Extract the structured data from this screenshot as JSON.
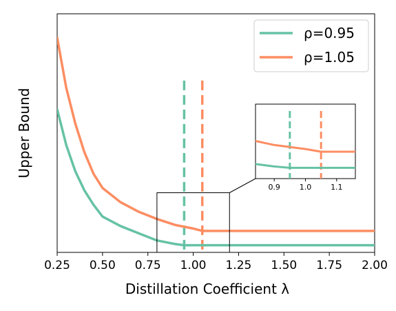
{
  "chart_data": {
    "type": "line",
    "title": "",
    "xlabel": "Distillation Coefficient λ",
    "ylabel": "Upper Bound",
    "xlim": [
      0.25,
      2.0
    ],
    "ylim": [
      0.0,
      1.0
    ],
    "x_ticks": [
      "0.25",
      "0.50",
      "0.75",
      "1.00",
      "1.25",
      "1.50",
      "1.75",
      "2.00"
    ],
    "x_tick_values": [
      0.25,
      0.5,
      0.75,
      1.0,
      1.25,
      1.5,
      1.75,
      2.0
    ],
    "y_ticks_shown": false,
    "grid": false,
    "legend_position": "top-right",
    "series": [
      {
        "name": "ρ=0.95",
        "color": "#66c2a5",
        "x": [
          0.25,
          0.3,
          0.35,
          0.4,
          0.45,
          0.5,
          0.6,
          0.7,
          0.8,
          0.9,
          0.95,
          1.0,
          1.25,
          1.5,
          1.75,
          2.0
        ],
        "y": [
          0.6,
          0.45,
          0.34,
          0.26,
          0.2,
          0.15,
          0.11,
          0.08,
          0.05,
          0.035,
          0.03,
          0.03,
          0.03,
          0.03,
          0.03,
          0.03
        ]
      },
      {
        "name": "ρ=1.05",
        "color": "#fc8d62",
        "x": [
          0.25,
          0.3,
          0.35,
          0.4,
          0.45,
          0.5,
          0.6,
          0.7,
          0.8,
          0.9,
          1.0,
          1.05,
          1.25,
          1.5,
          1.75,
          2.0
        ],
        "y": [
          0.9,
          0.69,
          0.54,
          0.42,
          0.33,
          0.27,
          0.21,
          0.17,
          0.14,
          0.115,
          0.1,
          0.09,
          0.09,
          0.09,
          0.09,
          0.09
        ]
      }
    ],
    "vertical_lines": [
      {
        "x": 0.95,
        "color": "#66c2a5",
        "style": "dashed",
        "y_top": 0.72
      },
      {
        "x": 1.05,
        "color": "#fc8d62",
        "style": "dashed",
        "y_top": 0.72
      }
    ],
    "zoom_region": {
      "xlim": [
        0.8,
        1.2
      ],
      "ylim": [
        0.0,
        0.25
      ]
    },
    "inset": {
      "xlim": [
        0.84,
        1.16
      ],
      "x_ticks": [
        "0.9",
        "1.0",
        "1.1"
      ],
      "x_tick_values": [
        0.9,
        1.0,
        1.1
      ]
    }
  }
}
